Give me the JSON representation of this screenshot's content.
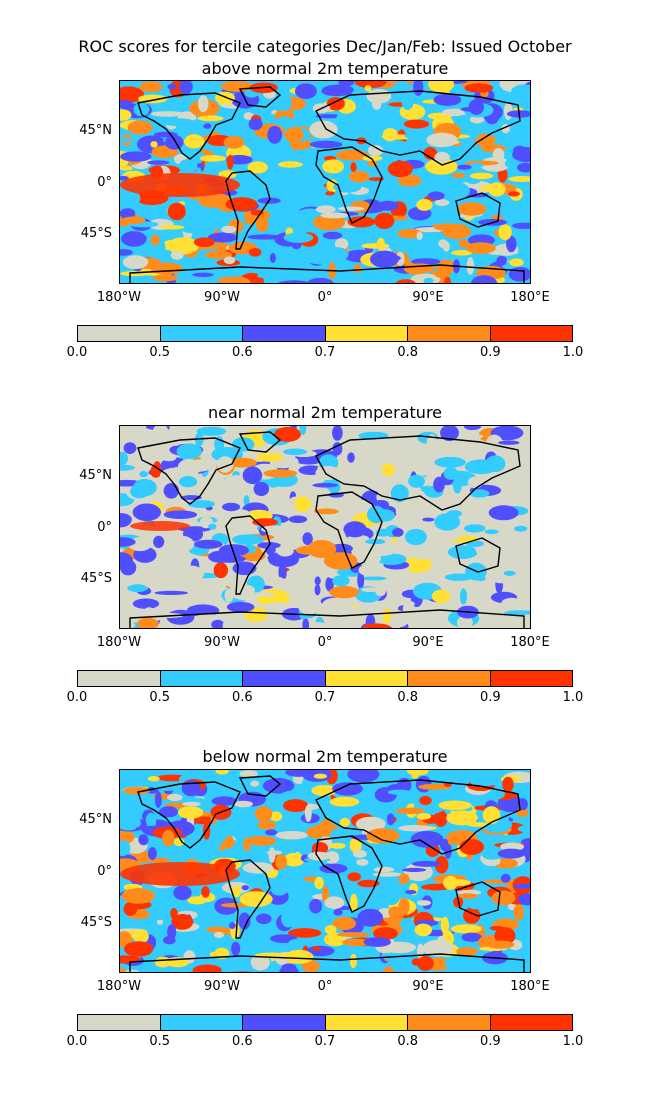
{
  "figure": {
    "title_line1": "ROC scores for tercile categories Dec/Jan/Feb: Issued October",
    "panels": [
      {
        "title": "above normal 2m temperature",
        "scheme": "above"
      },
      {
        "title": "near normal 2m temperature",
        "scheme": "near"
      },
      {
        "title": "below normal 2m temperature",
        "scheme": "below"
      }
    ],
    "y_ticks": [
      "45°N",
      "0°",
      "45°S"
    ],
    "x_ticks": [
      "180°W",
      "90°W",
      "0°",
      "90°E",
      "180°E"
    ],
    "colorbar": {
      "ticks": [
        "0.0",
        "0.5",
        "0.6",
        "0.7",
        "0.8",
        "0.9",
        "1.0"
      ],
      "colors": [
        "#d8d8c8",
        "#33ccff",
        "#4f4fff",
        "#ffe033",
        "#ff8c1a",
        "#ff3300"
      ]
    }
  }
}
